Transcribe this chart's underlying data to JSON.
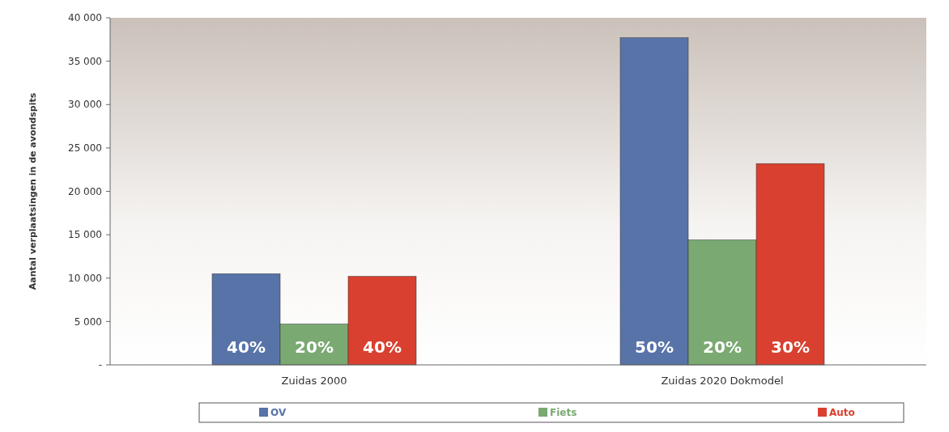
{
  "chart_data": {
    "type": "bar",
    "ylabel": "Aantal verplaatsingen in de avondspits",
    "categories": [
      "Zuidas 2000",
      "Zuidas 2020 Dokmodel"
    ],
    "series": [
      {
        "name": "OV",
        "color": "#5873a8",
        "values": [
          10500,
          37700
        ]
      },
      {
        "name": "Fiets",
        "color": "#7aa972",
        "values": [
          4700,
          14400
        ]
      },
      {
        "name": "Auto",
        "color": "#d9402f",
        "values": [
          10200,
          23200
        ]
      }
    ],
    "annotations": [
      "40%",
      "20%",
      "40%",
      "50%",
      "20%",
      "30%"
    ],
    "ylim": [
      0,
      40000
    ],
    "yticks": [
      {
        "value": 0,
        "label": "-"
      },
      {
        "value": 5000,
        "label": "5 000"
      },
      {
        "value": 10000,
        "label": "10 000"
      },
      {
        "value": 15000,
        "label": "15 000"
      },
      {
        "value": 20000,
        "label": "20 000"
      },
      {
        "value": 25000,
        "label": "25 000"
      },
      {
        "value": 30000,
        "label": "30 000"
      },
      {
        "value": 35000,
        "label": "35 000"
      },
      {
        "value": 40000,
        "label": "40 000"
      }
    ],
    "grid": false,
    "legend": "bottom"
  }
}
